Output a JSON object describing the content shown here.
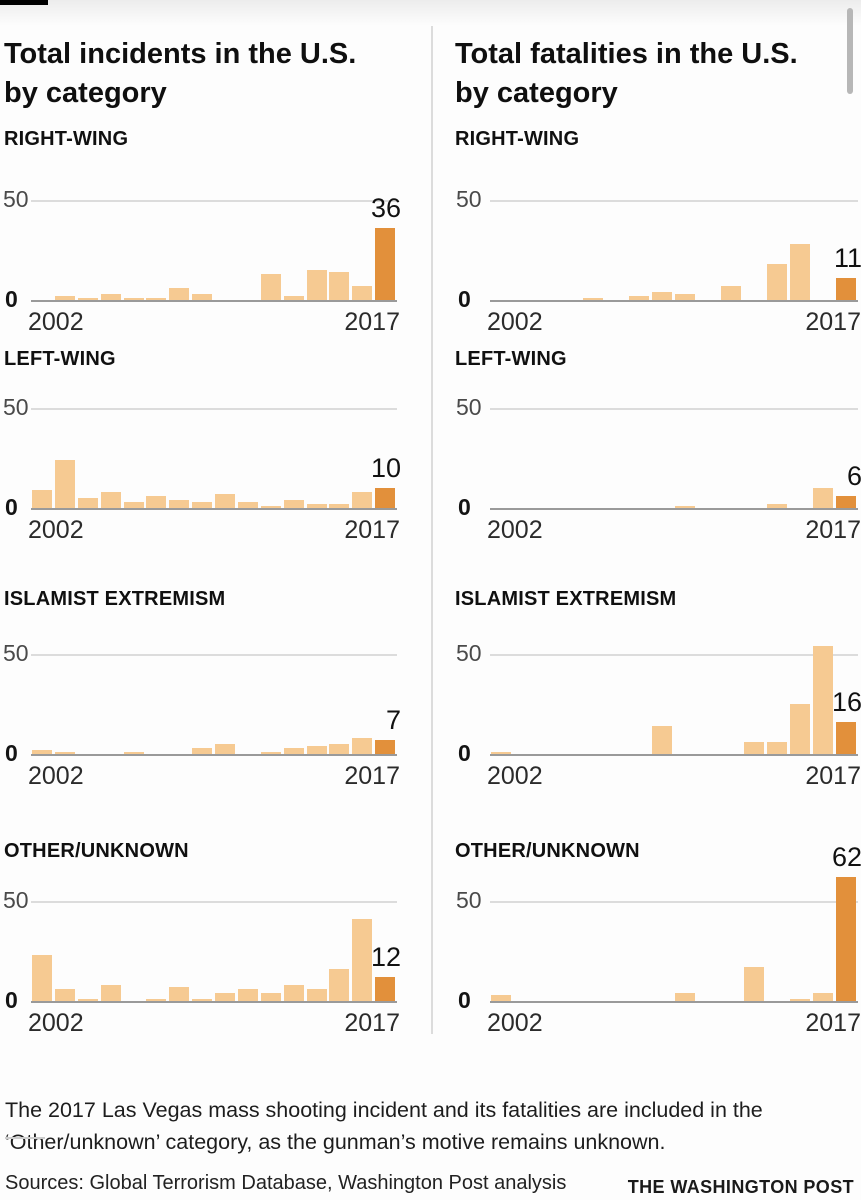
{
  "page": {
    "left_title": "Total incidents in the U.S. by category",
    "right_title": "Total fatalities in the U.S. by category",
    "note": "The 2017 Las Vegas mass shooting incident and its fatalities are included in the ‘Other/unknown’ category, as the gunman’s motive remains unknown.",
    "sources": "Sources: Global Terrorism Database, Washington Post analysis",
    "brand": "THE WASHINGTON POST"
  },
  "axis": {
    "x_start_label": "2002",
    "x_end_label": "2017",
    "y_top_label": "50",
    "y_zero_label": "0",
    "y_max": 50,
    "grid": "single 50 gridline, bold zero baseline"
  },
  "colors": {
    "bar": "#f6ca92",
    "bar_highlight": "#e2903b",
    "gridline": "#dcdcdc",
    "baseline": "#9a9a9a",
    "background": "#fdfdfd"
  },
  "years": [
    2002,
    2003,
    2004,
    2005,
    2006,
    2007,
    2008,
    2009,
    2010,
    2011,
    2012,
    2013,
    2014,
    2015,
    2016,
    2017
  ],
  "chart_data": [
    {
      "type": "bar",
      "panel": "Total incidents in the U.S. by category",
      "category": "RIGHT-WING",
      "ylim": [
        0,
        50
      ],
      "values": [
        0,
        2,
        1,
        3,
        1,
        1,
        6,
        3,
        0,
        0,
        13,
        2,
        15,
        14,
        7,
        36
      ],
      "callout": "36"
    },
    {
      "type": "bar",
      "panel": "Total incidents in the U.S. by category",
      "category": "LEFT-WING",
      "ylim": [
        0,
        50
      ],
      "values": [
        9,
        24,
        5,
        8,
        3,
        6,
        4,
        3,
        7,
        3,
        1,
        4,
        2,
        2,
        8,
        10
      ],
      "callout": "10"
    },
    {
      "type": "bar",
      "panel": "Total incidents in the U.S. by category",
      "category": "ISLAMIST EXTREMISM",
      "ylim": [
        0,
        50
      ],
      "values": [
        2,
        1,
        0,
        0,
        1,
        0,
        0,
        3,
        5,
        0,
        1,
        3,
        4,
        5,
        8,
        7
      ],
      "callout": "7"
    },
    {
      "type": "bar",
      "panel": "Total incidents in the U.S. by category",
      "category": "OTHER/UNKNOWN",
      "ylim": [
        0,
        50
      ],
      "values": [
        23,
        6,
        1,
        8,
        0,
        1,
        7,
        1,
        4,
        6,
        4,
        8,
        6,
        16,
        41,
        12
      ],
      "callout": "12"
    },
    {
      "type": "bar",
      "panel": "Total fatalities in the U.S. by category",
      "category": "RIGHT-WING",
      "ylim": [
        0,
        50
      ],
      "values": [
        0,
        0,
        0,
        0,
        1,
        0,
        2,
        4,
        3,
        0,
        7,
        0,
        18,
        28,
        0,
        11
      ],
      "callout": "11"
    },
    {
      "type": "bar",
      "panel": "Total fatalities in the U.S. by category",
      "category": "LEFT-WING",
      "ylim": [
        0,
        50
      ],
      "values": [
        0,
        0,
        0,
        0,
        0,
        0,
        0,
        0,
        1,
        0,
        0,
        0,
        2,
        0,
        10,
        6
      ],
      "callout": "6"
    },
    {
      "type": "bar",
      "panel": "Total fatalities in the U.S. by category",
      "category": "ISLAMIST EXTREMISM",
      "ylim": [
        0,
        50
      ],
      "values": [
        1,
        0,
        0,
        0,
        0,
        0,
        0,
        14,
        0,
        0,
        0,
        6,
        6,
        25,
        54,
        16
      ],
      "callout": "16"
    },
    {
      "type": "bar",
      "panel": "Total fatalities in the U.S. by category",
      "category": "OTHER/UNKNOWN",
      "ylim": [
        0,
        50
      ],
      "values": [
        3,
        0,
        0,
        0,
        0,
        0,
        0,
        0,
        4,
        0,
        0,
        17,
        0,
        1,
        4,
        62
      ],
      "callout": "62"
    }
  ]
}
